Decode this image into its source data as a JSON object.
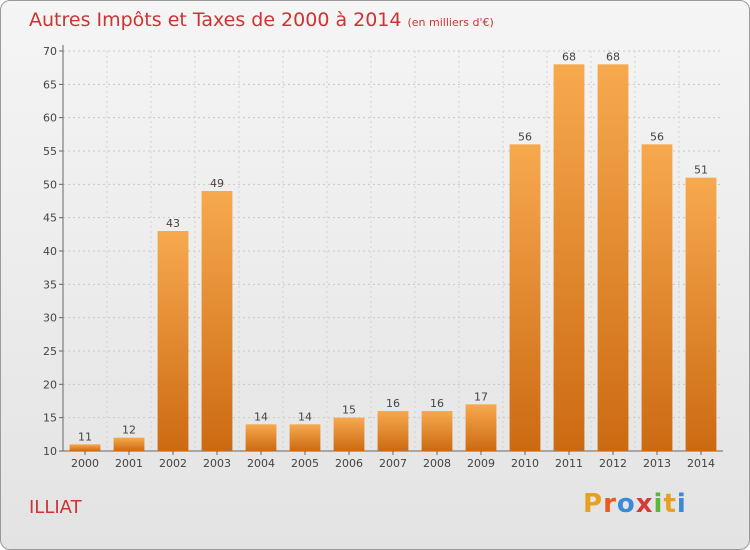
{
  "header": {
    "title": "Autres Impôts et Taxes de 2000 à 2014",
    "subtitle": "(en milliers d'€)"
  },
  "footer": {
    "commune": "ILLIAT",
    "logo_letters": [
      "P",
      "r",
      "o",
      "x",
      "i",
      "t",
      "i"
    ],
    "logo_colors": [
      "#e8a020",
      "#e85a20",
      "#3a8ad8",
      "#d83a3a",
      "#5ab83a",
      "#e8a020",
      "#3a8ad8"
    ]
  },
  "chart_data": {
    "type": "bar",
    "categories": [
      "2000",
      "2001",
      "2002",
      "2003",
      "2004",
      "2005",
      "2006",
      "2007",
      "2008",
      "2009",
      "2010",
      "2011",
      "2012",
      "2013",
      "2014"
    ],
    "values": [
      11,
      12,
      43,
      49,
      14,
      14,
      15,
      16,
      16,
      17,
      56,
      68,
      68,
      56,
      51
    ],
    "ylim": [
      10,
      70
    ],
    "yticks": [
      10,
      15,
      20,
      25,
      30,
      35,
      40,
      45,
      50,
      55,
      60,
      65,
      70
    ],
    "grid": true,
    "bar_color_light": "#f7a94e",
    "bar_color_dark": "#cc6a12"
  }
}
